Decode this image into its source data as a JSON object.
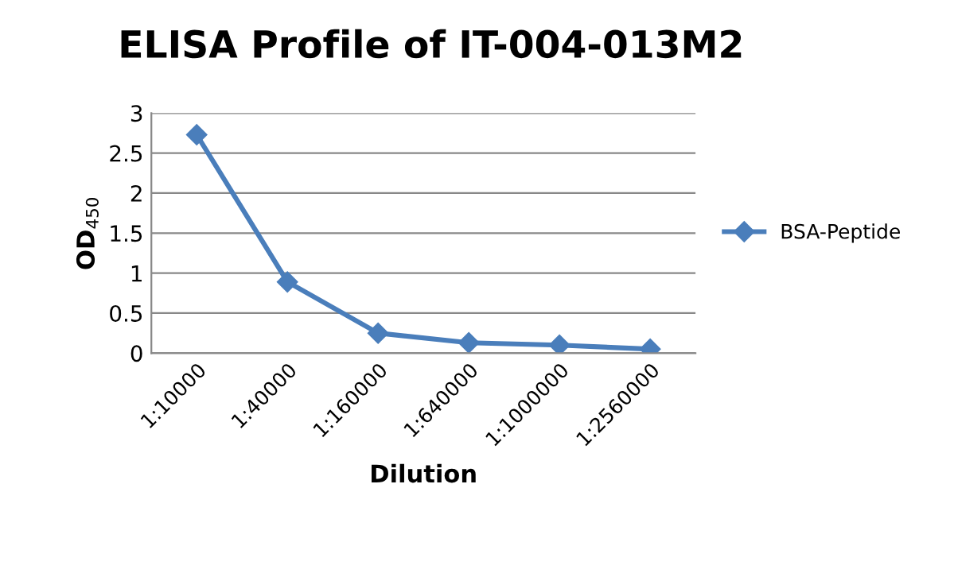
{
  "chart_data": {
    "type": "line",
    "title": "ELISA Profile of IT-004-013M2",
    "xlabel": "Dilution",
    "ylabel": "OD$_{450}$",
    "categories": [
      "1:10000",
      "1:40000",
      "1:160000",
      "1:640000",
      "1:1000000",
      "1:2560000"
    ],
    "series": [
      {
        "name": "BSA-Peptide",
        "color": "#4a7ebb",
        "values": [
          2.73,
          0.89,
          0.25,
          0.13,
          0.1,
          0.05
        ]
      }
    ],
    "ylim": [
      0,
      3
    ],
    "yticks": [
      0,
      0.5,
      1,
      1.5,
      2,
      2.5,
      3
    ],
    "grid": "y",
    "legend": "right",
    "marker": "diamond",
    "line_style": "solid"
  }
}
